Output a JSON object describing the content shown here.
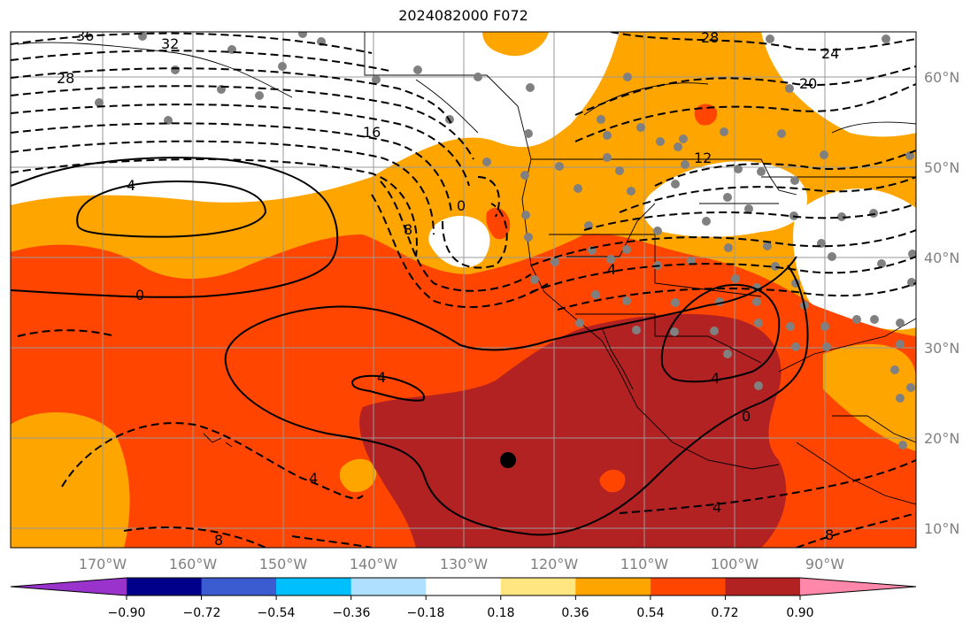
{
  "title": "2024082000 F072",
  "map": {
    "lon_labels": [
      "170°W",
      "160°W",
      "150°W",
      "140°W",
      "130°W",
      "120°W",
      "110°W",
      "100°W",
      "90°W"
    ],
    "lat_labels": [
      "60°N",
      "50°N",
      "40°N",
      "30°N",
      "20°N",
      "10°N"
    ],
    "contour_labels": {
      "solid": [
        "4",
        "0",
        "4",
        "4",
        "0",
        "4"
      ],
      "dashed": [
        "36",
        "32",
        "28",
        "28",
        "24",
        "20",
        "16",
        "12",
        "8",
        "0",
        "4",
        "4",
        "8",
        "8"
      ]
    }
  },
  "colorbar": {
    "ticks": [
      "−0.90",
      "−0.72",
      "−0.54",
      "−0.36",
      "−0.18",
      "0.18",
      "0.36",
      "0.54",
      "0.72",
      "0.90"
    ],
    "colors": [
      "#9933cc",
      "#00008b",
      "#3b5bd0",
      "#00bfff",
      "#b0e0ff",
      "#ffffff",
      "#ffe680",
      "#ffa500",
      "#ff4500",
      "#b22222",
      "#ff88aa"
    ]
  }
}
